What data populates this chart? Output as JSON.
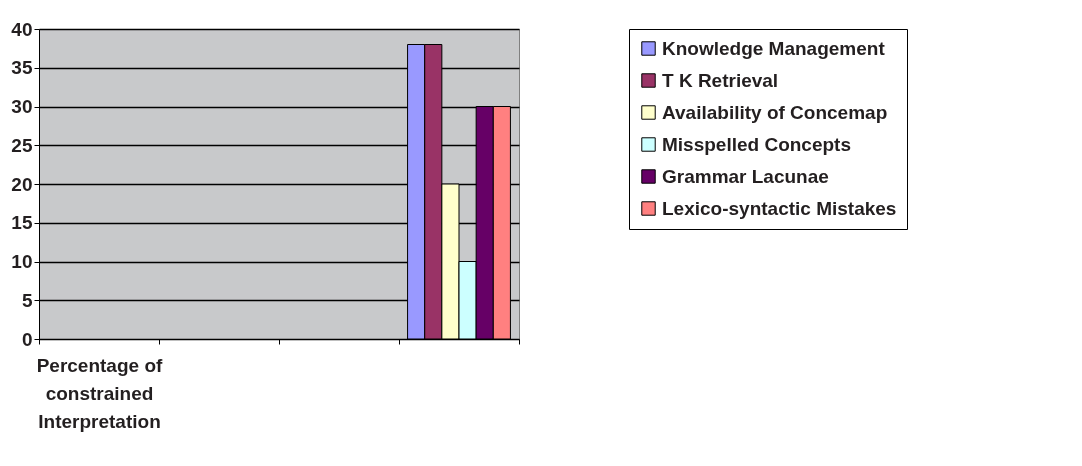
{
  "chart_data": {
    "type": "bar",
    "categories": [
      "Percentage of constrained Interpretation",
      null,
      null,
      null
    ],
    "series": [
      {
        "name": "Knowledge Management",
        "color": "#9999ff",
        "values": [
          null,
          null,
          null,
          38
        ]
      },
      {
        "name": "T K Retrieval",
        "color": "#993366",
        "values": [
          null,
          null,
          null,
          38
        ]
      },
      {
        "name": "Availability of Concemap",
        "color": "#ffffcc",
        "values": [
          null,
          null,
          null,
          20
        ]
      },
      {
        "name": "Misspelled Concepts",
        "color": "#ccffff",
        "values": [
          null,
          null,
          null,
          10
        ]
      },
      {
        "name": "Grammar Lacunae",
        "color": "#660066",
        "values": [
          null,
          null,
          null,
          30
        ]
      },
      {
        "name": "Lexico-syntactic Mistakes",
        "color": "#ff8080",
        "values": [
          null,
          null,
          null,
          30
        ]
      }
    ],
    "ylim": [
      0,
      40
    ],
    "yticks": [
      0,
      5,
      10,
      15,
      20,
      25,
      30,
      35,
      40
    ],
    "grid": "y",
    "legend": "right"
  }
}
